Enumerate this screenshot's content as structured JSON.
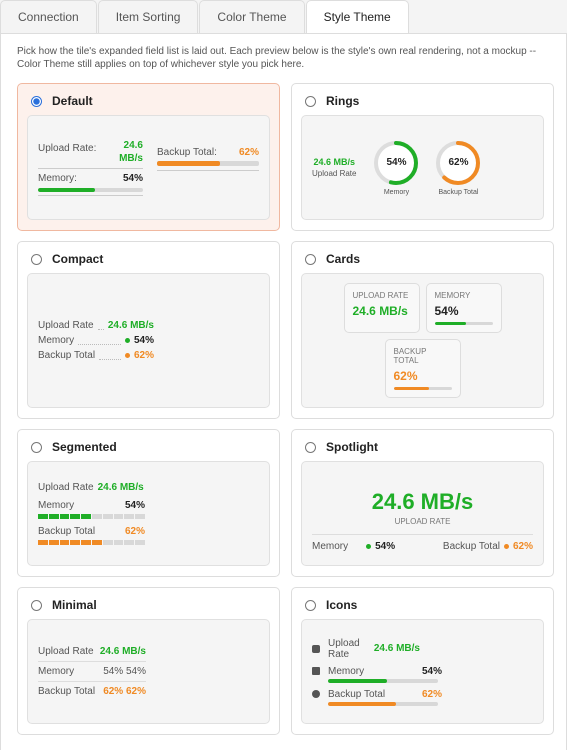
{
  "tabs": [
    "Connection",
    "Item Sorting",
    "Color Theme",
    "Style Theme"
  ],
  "active_tab": 3,
  "description": "Pick how the tile's expanded field list is laid out. Each preview below is the style's own real rendering, not a mockup -- Color Theme still applies on top of whichever style you pick here.",
  "styles": [
    {
      "name": "Default",
      "selected": true,
      "fields": [
        {
          "label": "Upload Rate:",
          "value": "24.6 MB/s"
        },
        {
          "label": "Memory:",
          "value": "54%",
          "percent": 54
        },
        {
          "label": "Backup Total:",
          "value": "62%",
          "percent": 62
        }
      ]
    },
    {
      "name": "Rings",
      "selected": false,
      "fields": [
        {
          "label": "Upload Rate",
          "value": "24.6 MB/s"
        },
        {
          "label": "Memory",
          "value": "54%",
          "percent": 54
        },
        {
          "label": "Backup Total",
          "value": "62%",
          "percent": 62
        }
      ]
    },
    {
      "name": "Compact",
      "selected": false,
      "fields": [
        {
          "label": "Upload Rate",
          "value": "24.6 MB/s"
        },
        {
          "label": "Memory",
          "value": "54%"
        },
        {
          "label": "Backup Total",
          "value": "62%"
        }
      ]
    },
    {
      "name": "Cards",
      "selected": false,
      "fields": [
        {
          "label": "UPLOAD RATE",
          "value": "24.6 MB/s"
        },
        {
          "label": "MEMORY",
          "value": "54%",
          "percent": 54
        },
        {
          "label": "BACKUP TOTAL",
          "value": "62%",
          "percent": 62
        }
      ]
    },
    {
      "name": "Segmented",
      "selected": false,
      "fields": [
        {
          "label": "Upload Rate",
          "value": "24.6 MB/s"
        },
        {
          "label": "Memory",
          "value": "54%",
          "percent": 54
        },
        {
          "label": "Backup Total",
          "value": "62%",
          "percent": 62
        }
      ]
    },
    {
      "name": "Spotlight",
      "selected": false,
      "fields": [
        {
          "label": "UPLOAD RATE",
          "value": "24.6 MB/s"
        },
        {
          "label": "Memory",
          "value": "54%"
        },
        {
          "label": "Backup Total",
          "value": "62%"
        }
      ]
    },
    {
      "name": "Minimal",
      "selected": false,
      "fields": [
        {
          "label": "Upload Rate",
          "value": "24.6 MB/s"
        },
        {
          "label": "Memory",
          "value": "54% 54%"
        },
        {
          "label": "Backup Total",
          "value": "62% 62%"
        }
      ]
    },
    {
      "name": "Icons",
      "selected": false,
      "fields": [
        {
          "label": "Upload Rate",
          "value": "24.6 MB/s"
        },
        {
          "label": "Memory",
          "value": "54%",
          "percent": 54
        },
        {
          "label": "Backup Total",
          "value": "62%",
          "percent": 62
        }
      ]
    }
  ]
}
